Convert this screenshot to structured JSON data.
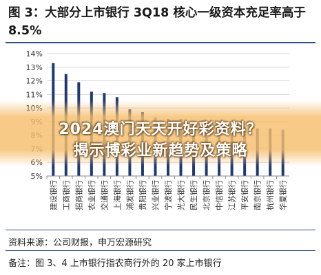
{
  "figure": {
    "title": "图 3：大部分上市银行 3Q18 核心一级资本充足率高于 8.5%",
    "source": "资料来源：公司财报，申万宏源研究",
    "note": "备注：图 3、4 上市银行指农商行外的 20 家上市银行"
  },
  "overlay": {
    "line1": "2024澳门天天开好彩资料？",
    "line2": "揭示博彩业新趋势及策略"
  },
  "colors": {
    "bar": "#1f3a73",
    "rule": "#2e4d86",
    "grid": "#d8d8d8"
  },
  "chart_data": {
    "type": "bar",
    "title": "",
    "xlabel": "",
    "ylabel": "",
    "ylim": [
      5,
      14
    ],
    "yticks": [
      "14%",
      "13%",
      "12%",
      "11%",
      "10%",
      "9%",
      "8%",
      "7%",
      "6%",
      "5%"
    ],
    "categories": [
      "建设银行",
      "工商银行",
      "招商银行",
      "农业银行",
      "交通银行",
      "上海银行",
      "浦发银行",
      "贵阳银行",
      "兴业银行",
      "宁波银行",
      "光大银行",
      "民生银行",
      "北京银行",
      "中信银行",
      "江苏银行",
      "平安银行",
      "南京银行",
      "杭州银行",
      "华夏银行"
    ],
    "values": [
      13.3,
      12.5,
      11.9,
      11.2,
      11.1,
      10.8,
      9.9,
      9.7,
      9.3,
      9.2,
      9.2,
      8.9,
      8.9,
      8.7,
      8.7,
      8.6,
      8.5,
      8.5,
      8.4
    ]
  }
}
